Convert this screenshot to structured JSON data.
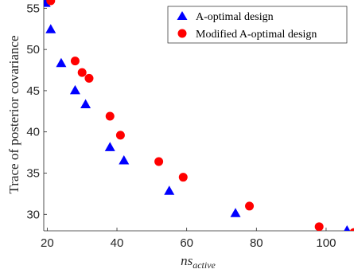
{
  "chart_data": {
    "type": "scatter",
    "title": "",
    "xlabel_main": "ns",
    "xlabel_sub": "active",
    "ylabel": "Trace of posterior covariance",
    "xlim": [
      19,
      108
    ],
    "ylim": [
      28,
      56
    ],
    "x_ticks": [
      20,
      40,
      60,
      80,
      100
    ],
    "y_ticks": [
      30,
      35,
      40,
      45,
      50,
      55
    ],
    "grid": false,
    "legend_position": "top-right",
    "series": [
      {
        "name": "A-optimal design",
        "marker": "triangle",
        "color": "#0000ff",
        "points": [
          {
            "x": 19.5,
            "y": 55.6
          },
          {
            "x": 21.0,
            "y": 52.4
          },
          {
            "x": 24.0,
            "y": 48.3
          },
          {
            "x": 28.0,
            "y": 45.0
          },
          {
            "x": 31.0,
            "y": 43.3
          },
          {
            "x": 38.0,
            "y": 38.1
          },
          {
            "x": 42.0,
            "y": 36.5
          },
          {
            "x": 55.0,
            "y": 32.8
          },
          {
            "x": 74.0,
            "y": 30.1
          },
          {
            "x": 106.0,
            "y": 28.0
          }
        ]
      },
      {
        "name": "Modified A-optimal design",
        "marker": "circle",
        "color": "#ff0000",
        "points": [
          {
            "x": 21.0,
            "y": 55.9
          },
          {
            "x": 28.0,
            "y": 48.6
          },
          {
            "x": 30.0,
            "y": 47.2
          },
          {
            "x": 32.0,
            "y": 46.5
          },
          {
            "x": 38.0,
            "y": 41.9
          },
          {
            "x": 41.0,
            "y": 39.6
          },
          {
            "x": 52.0,
            "y": 36.4
          },
          {
            "x": 59.0,
            "y": 34.5
          },
          {
            "x": 78.0,
            "y": 31.0
          },
          {
            "x": 98.0,
            "y": 28.5
          },
          {
            "x": 108.0,
            "y": 27.8
          }
        ]
      }
    ]
  }
}
